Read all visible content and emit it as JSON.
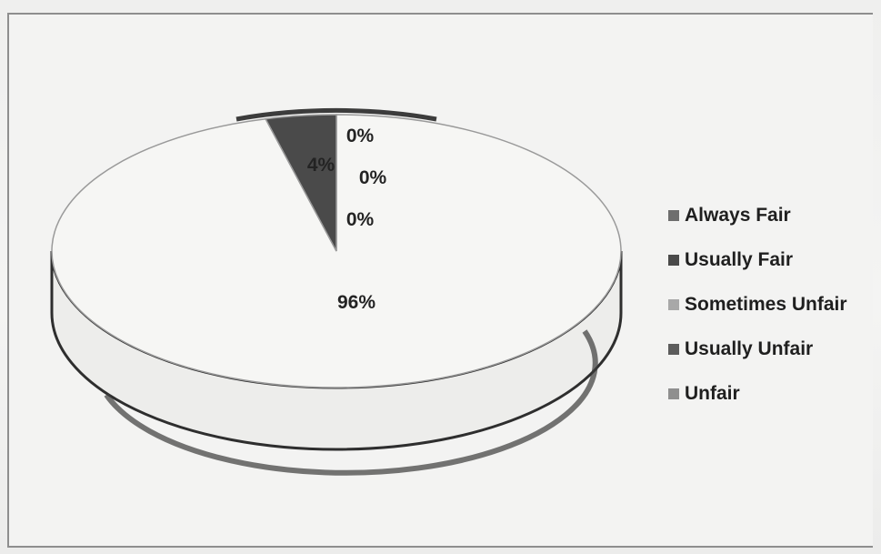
{
  "chart_data": {
    "type": "pie",
    "style": "3d",
    "categories": [
      "Always Fair",
      "Usually Fair",
      "Sometimes Unfair",
      "Usually Unfair",
      "Unfair"
    ],
    "values": [
      96,
      4,
      0,
      0,
      0
    ],
    "data_labels": [
      "96%",
      "4%",
      "0%",
      "0%",
      "0%"
    ],
    "colors": [
      "#f6f6f4",
      "#4a4a4a",
      "#a8a8a8",
      "#5c5c5c",
      "#8f8f8f"
    ],
    "legend_position": "right",
    "title": ""
  }
}
